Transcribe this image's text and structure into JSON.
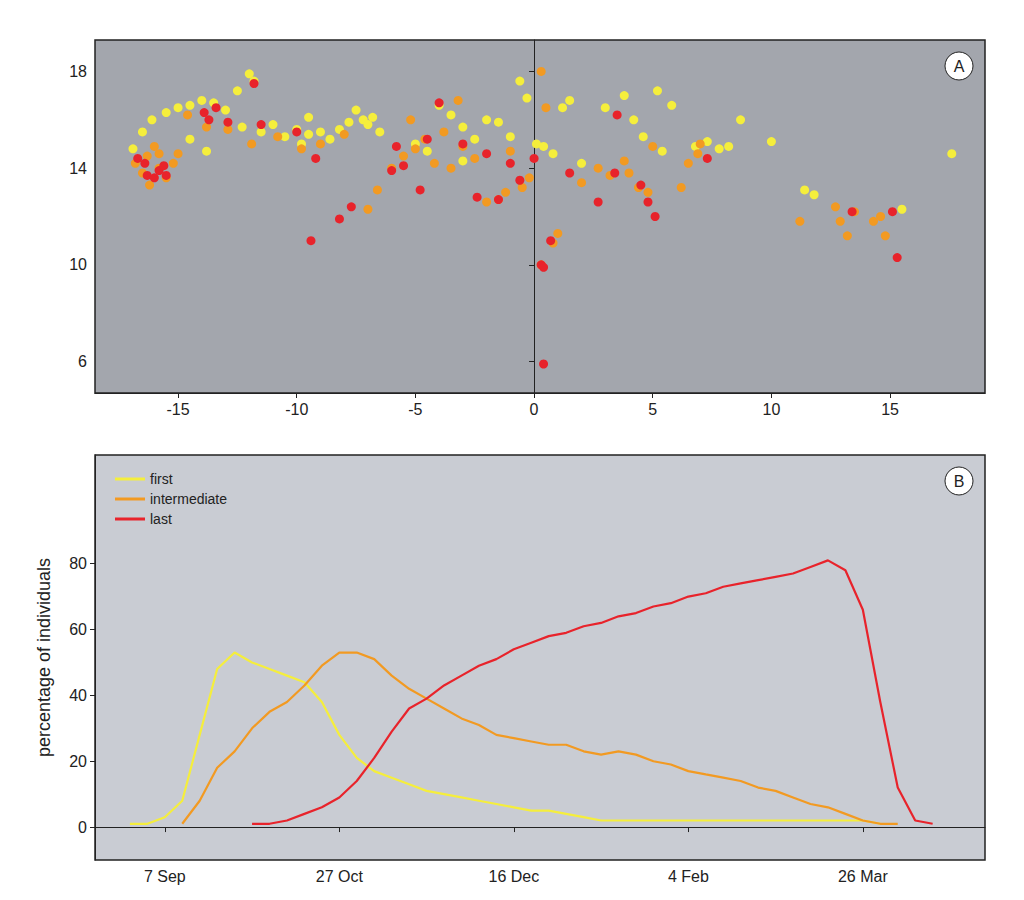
{
  "chart_data": [
    {
      "type": "scatter",
      "annotation": "A",
      "xlim": [
        -18.5,
        19
      ],
      "xticks": [
        -15,
        -10,
        -5,
        0,
        5,
        10,
        15
      ],
      "ylim": [
        4.7,
        19.3
      ],
      "yticks": [
        6,
        10,
        14,
        18
      ],
      "grid": false,
      "series": [
        {
          "color": "#f5ee3c",
          "values": [
            [
              -16.9,
              14.8
            ],
            [
              -16.5,
              15.5
            ],
            [
              -16.1,
              16.0
            ],
            [
              -15.5,
              16.3
            ],
            [
              -15.0,
              16.5
            ],
            [
              -14.5,
              16.6
            ],
            [
              -14.0,
              16.8
            ],
            [
              -13.5,
              16.7
            ],
            [
              -13.0,
              16.4
            ],
            [
              -12.5,
              17.2
            ],
            [
              -12.0,
              17.9
            ],
            [
              -11.8,
              17.6
            ],
            [
              -12.3,
              15.7
            ],
            [
              -11.5,
              15.5
            ],
            [
              -11.0,
              15.8
            ],
            [
              -10.5,
              15.3
            ],
            [
              -10.0,
              15.6
            ],
            [
              -9.8,
              15.0
            ],
            [
              -9.5,
              15.4
            ],
            [
              -9.0,
              15.5
            ],
            [
              -8.6,
              15.2
            ],
            [
              -8.2,
              15.6
            ],
            [
              -7.8,
              15.9
            ],
            [
              -7.5,
              16.4
            ],
            [
              -7.2,
              16.0
            ],
            [
              -7.0,
              15.8
            ],
            [
              -6.8,
              16.1
            ],
            [
              -6.5,
              15.5
            ],
            [
              -5.0,
              15.0
            ],
            [
              -4.5,
              14.7
            ],
            [
              -4.0,
              16.6
            ],
            [
              -3.5,
              16.2
            ],
            [
              -3.0,
              15.7
            ],
            [
              -2.5,
              15.2
            ],
            [
              -2.0,
              16.0
            ],
            [
              -1.5,
              15.9
            ],
            [
              -1.0,
              15.3
            ],
            [
              -0.6,
              17.6
            ],
            [
              -0.3,
              16.9
            ],
            [
              0.1,
              15.0
            ],
            [
              0.4,
              14.9
            ],
            [
              0.8,
              14.6
            ],
            [
              1.2,
              16.5
            ],
            [
              1.5,
              16.8
            ],
            [
              3.0,
              16.5
            ],
            [
              3.8,
              17.0
            ],
            [
              4.2,
              16.0
            ],
            [
              4.6,
              15.3
            ],
            [
              5.2,
              17.2
            ],
            [
              5.8,
              16.6
            ],
            [
              5.4,
              14.7
            ],
            [
              6.8,
              14.9
            ],
            [
              7.3,
              15.1
            ],
            [
              7.8,
              14.8
            ],
            [
              8.2,
              14.9
            ],
            [
              8.7,
              16.0
            ],
            [
              10.0,
              15.1
            ],
            [
              11.4,
              13.1
            ],
            [
              11.8,
              12.9
            ],
            [
              15.5,
              12.3
            ],
            [
              17.6,
              14.6
            ],
            [
              -13.8,
              14.7
            ],
            [
              -14.5,
              15.2
            ],
            [
              -9.5,
              16.1
            ],
            [
              -3.0,
              14.3
            ],
            [
              2.0,
              14.2
            ]
          ]
        },
        {
          "color": "#f29a22",
          "values": [
            [
              -16.8,
              14.2
            ],
            [
              -16.5,
              13.8
            ],
            [
              -16.3,
              14.5
            ],
            [
              -16.0,
              14.9
            ],
            [
              -15.8,
              14.0
            ],
            [
              -15.5,
              13.6
            ],
            [
              -15.2,
              14.2
            ],
            [
              -15.0,
              14.6
            ],
            [
              -16.2,
              13.3
            ],
            [
              -15.8,
              14.6
            ],
            [
              -14.6,
              16.2
            ],
            [
              -13.8,
              15.7
            ],
            [
              -12.9,
              15.6
            ],
            [
              -11.9,
              15.0
            ],
            [
              -10.8,
              15.3
            ],
            [
              -9.0,
              15.0
            ],
            [
              -8.0,
              15.4
            ],
            [
              -7.0,
              12.3
            ],
            [
              -6.6,
              13.1
            ],
            [
              -6.0,
              14.0
            ],
            [
              -5.5,
              14.5
            ],
            [
              -5.0,
              14.8
            ],
            [
              -4.6,
              15.2
            ],
            [
              -4.2,
              14.2
            ],
            [
              -3.8,
              15.5
            ],
            [
              -3.5,
              14.0
            ],
            [
              -3.0,
              14.9
            ],
            [
              -2.5,
              14.4
            ],
            [
              -2.0,
              12.6
            ],
            [
              -1.5,
              12.7
            ],
            [
              -1.2,
              13.0
            ],
            [
              -1.0,
              14.7
            ],
            [
              -0.5,
              13.2
            ],
            [
              -0.2,
              13.6
            ],
            [
              0.3,
              18.0
            ],
            [
              0.5,
              16.5
            ],
            [
              0.3,
              10.0
            ],
            [
              0.8,
              10.9
            ],
            [
              1.0,
              11.3
            ],
            [
              2.7,
              14.0
            ],
            [
              3.2,
              13.7
            ],
            [
              3.8,
              14.3
            ],
            [
              4.0,
              13.8
            ],
            [
              4.4,
              13.2
            ],
            [
              4.8,
              13.0
            ],
            [
              5.0,
              14.9
            ],
            [
              6.2,
              13.2
            ],
            [
              6.5,
              14.2
            ],
            [
              6.9,
              14.6
            ],
            [
              7.0,
              15.0
            ],
            [
              11.2,
              11.8
            ],
            [
              12.7,
              12.4
            ],
            [
              12.9,
              11.8
            ],
            [
              13.2,
              11.2
            ],
            [
              13.5,
              12.2
            ],
            [
              14.3,
              11.8
            ],
            [
              14.6,
              12.0
            ],
            [
              14.8,
              11.2
            ],
            [
              -9.8,
              14.8
            ],
            [
              -5.2,
              16.0
            ],
            [
              2.0,
              13.4
            ],
            [
              -3.2,
              16.8
            ]
          ]
        },
        {
          "color": "#e8232b",
          "values": [
            [
              -16.7,
              14.4
            ],
            [
              -16.3,
              13.7
            ],
            [
              -16.0,
              13.6
            ],
            [
              -15.8,
              13.9
            ],
            [
              -15.6,
              14.1
            ],
            [
              -15.5,
              13.7
            ],
            [
              -16.4,
              14.2
            ],
            [
              -13.9,
              16.3
            ],
            [
              -13.7,
              16.0
            ],
            [
              -13.4,
              16.5
            ],
            [
              -12.9,
              15.9
            ],
            [
              -11.8,
              17.5
            ],
            [
              -11.5,
              15.8
            ],
            [
              -10.0,
              15.5
            ],
            [
              -9.2,
              14.4
            ],
            [
              -9.4,
              11.0
            ],
            [
              -8.2,
              11.9
            ],
            [
              -7.7,
              12.4
            ],
            [
              -6.0,
              13.9
            ],
            [
              -5.8,
              14.9
            ],
            [
              -5.5,
              14.1
            ],
            [
              -4.8,
              13.1
            ],
            [
              -4.5,
              15.2
            ],
            [
              -4.0,
              16.7
            ],
            [
              -3.0,
              15.0
            ],
            [
              -2.4,
              12.8
            ],
            [
              -1.5,
              12.7
            ],
            [
              -1.0,
              14.2
            ],
            [
              -0.6,
              13.5
            ],
            [
              0.0,
              14.4
            ],
            [
              0.3,
              10.0
            ],
            [
              0.4,
              9.9
            ],
            [
              0.7,
              11.0
            ],
            [
              0.4,
              5.9
            ],
            [
              1.5,
              13.8
            ],
            [
              2.7,
              12.6
            ],
            [
              3.5,
              16.2
            ],
            [
              4.5,
              13.3
            ],
            [
              4.8,
              12.6
            ],
            [
              5.1,
              12.0
            ],
            [
              7.3,
              14.4
            ],
            [
              13.4,
              12.2
            ],
            [
              15.1,
              12.2
            ],
            [
              15.3,
              10.3
            ],
            [
              -2.0,
              14.6
            ],
            [
              3.4,
              13.8
            ]
          ]
        }
      ]
    },
    {
      "type": "line",
      "annotation": "B",
      "ylabel": "percentage of individuals",
      "x": [
        null,
        null,
        null,
        null,
        "7 Sep",
        null,
        null,
        null,
        null,
        null,
        null,
        null,
        null,
        null,
        "27 Oct",
        null,
        null,
        null,
        null,
        null,
        null,
        null,
        null,
        null,
        "16 Dec",
        null,
        null,
        null,
        null,
        null,
        null,
        null,
        null,
        null,
        "4 Feb",
        null,
        null,
        null,
        null,
        null,
        null,
        null,
        null,
        null,
        "26 Mar",
        null,
        null,
        null,
        null,
        null,
        null,
        null
      ],
      "ylim": [
        -10,
        113
      ],
      "yticks": [
        0,
        20,
        40,
        60,
        80
      ],
      "grid": false,
      "legend": "upper left",
      "series": [
        {
          "name": "first",
          "color": "#f5ee3c",
          "values": [
            null,
            null,
            1,
            1,
            3,
            8,
            28,
            48,
            53,
            50,
            48,
            46,
            44,
            38,
            28,
            21,
            17,
            15,
            13,
            11,
            10,
            9,
            8,
            7,
            6,
            5,
            5,
            4,
            3,
            2,
            2,
            2,
            2,
            2,
            2,
            2,
            2,
            2,
            2,
            2,
            2,
            2,
            2,
            2,
            2,
            1,
            null,
            null,
            null,
            null,
            null,
            null
          ]
        },
        {
          "name": "intermediate",
          "color": "#f29a22",
          "values": [
            null,
            null,
            null,
            null,
            null,
            1,
            8,
            18,
            23,
            30,
            35,
            38,
            43,
            49,
            53,
            53,
            51,
            46,
            42,
            39,
            36,
            33,
            31,
            28,
            27,
            26,
            25,
            25,
            23,
            22,
            23,
            22,
            20,
            19,
            17,
            16,
            15,
            14,
            12,
            11,
            9,
            7,
            6,
            4,
            2,
            1,
            1,
            null,
            null,
            null,
            null,
            null
          ]
        },
        {
          "name": "last",
          "color": "#e8232b",
          "values": [
            null,
            null,
            null,
            null,
            null,
            null,
            null,
            null,
            null,
            1,
            1,
            2,
            4,
            6,
            9,
            14,
            21,
            29,
            36,
            39,
            43,
            46,
            49,
            51,
            54,
            56,
            58,
            59,
            61,
            62,
            64,
            65,
            67,
            68,
            70,
            71,
            73,
            74,
            75,
            76,
            77,
            79,
            81,
            78,
            66,
            38,
            12,
            2,
            1,
            null,
            null,
            null
          ]
        }
      ]
    }
  ]
}
